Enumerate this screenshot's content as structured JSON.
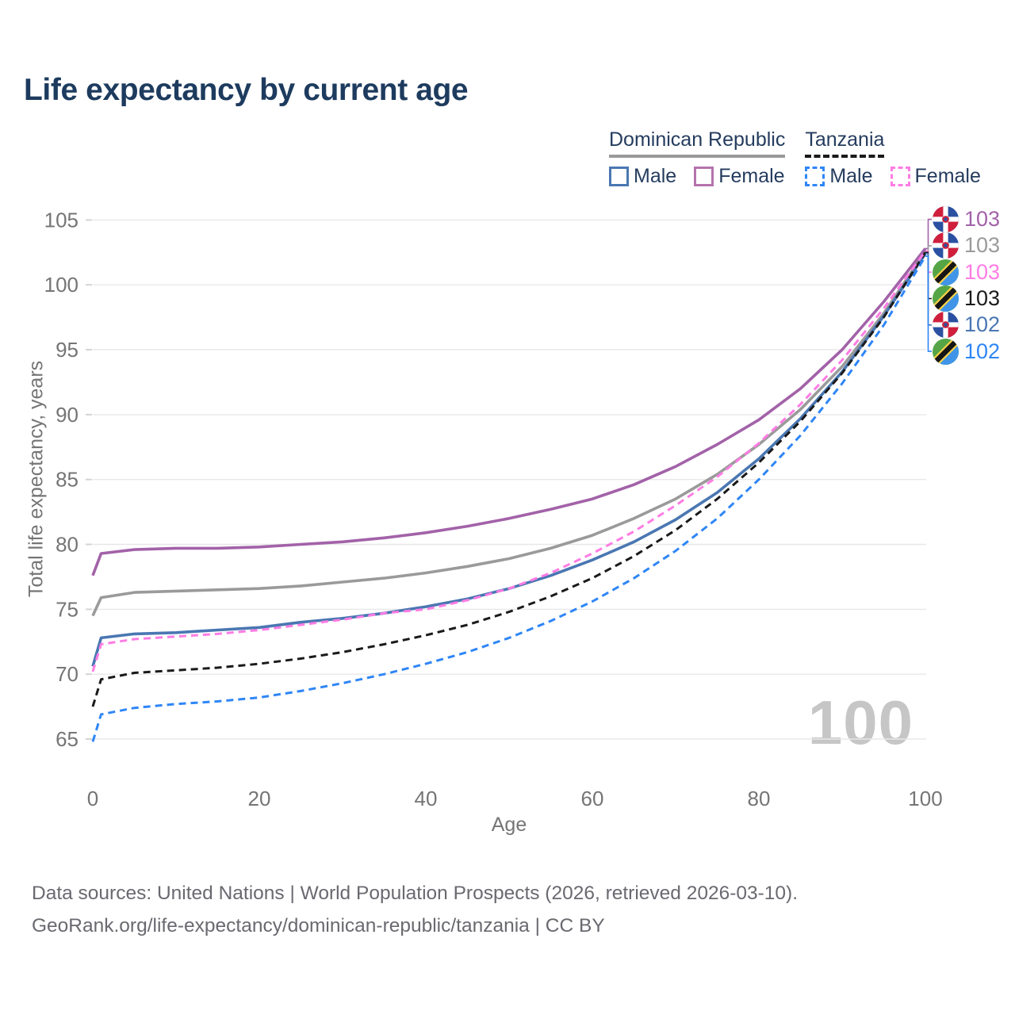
{
  "title": "Life expectancy by current age",
  "watermark": "100",
  "legend": {
    "groups": [
      {
        "label": "Dominican Republic",
        "line_style": "solid",
        "underline_color": "#9a9a9a",
        "items": [
          {
            "label": "Male",
            "color": "#4a77b2"
          },
          {
            "label": "Female",
            "color": "#b573ad"
          }
        ]
      },
      {
        "label": "Tanzania",
        "line_style": "dashed",
        "underline_color": "#1a1a1a",
        "items": [
          {
            "label": "Male",
            "color": "#2f86f6"
          },
          {
            "label": "Female",
            "color": "#ff7ce4"
          }
        ]
      }
    ]
  },
  "chart_data": {
    "type": "line",
    "title": "Life expectancy by current age",
    "xlabel": "Age",
    "ylabel": "Total life expectancy, years",
    "xlim": [
      0,
      100
    ],
    "ylim": [
      65,
      105
    ],
    "xticks": [
      0,
      20,
      40,
      60,
      80,
      100
    ],
    "yticks": [
      65,
      70,
      75,
      80,
      85,
      90,
      95,
      100,
      105
    ],
    "grid": "horizontal",
    "x": [
      0,
      1,
      5,
      10,
      15,
      20,
      25,
      30,
      35,
      40,
      45,
      50,
      55,
      60,
      65,
      70,
      75,
      80,
      85,
      90,
      95,
      100
    ],
    "series": [
      {
        "id": "dr_total",
        "name": "Dominican Republic - Total",
        "country": "Dominican Republic",
        "sex": "Both",
        "color": "#9a9a9a",
        "dash": false,
        "values": [
          74.5,
          75.9,
          76.3,
          76.4,
          76.5,
          76.6,
          76.8,
          77.1,
          77.4,
          77.8,
          78.3,
          78.9,
          79.7,
          80.7,
          82.0,
          83.5,
          85.4,
          87.7,
          90.4,
          93.7,
          97.8,
          102.6
        ],
        "end_value_label": "103"
      },
      {
        "id": "dr_male",
        "name": "Dominican Republic - Male",
        "country": "Dominican Republic",
        "sex": "Male",
        "color": "#4a77b2",
        "dash": false,
        "values": [
          70.6,
          72.8,
          73.1,
          73.2,
          73.4,
          73.6,
          74.0,
          74.3,
          74.7,
          75.2,
          75.8,
          76.6,
          77.6,
          78.8,
          80.2,
          81.9,
          84.0,
          86.6,
          89.7,
          93.3,
          97.6,
          102.4
        ],
        "end_value_label": "102"
      },
      {
        "id": "dr_female",
        "name": "Dominican Republic - Female",
        "country": "Dominican Republic",
        "sex": "Female",
        "color": "#a262a8",
        "dash": false,
        "values": [
          77.6,
          79.3,
          79.6,
          79.7,
          79.7,
          79.8,
          80.0,
          80.2,
          80.5,
          80.9,
          81.4,
          82.0,
          82.7,
          83.5,
          84.6,
          86.0,
          87.7,
          89.6,
          92.0,
          95.0,
          98.7,
          102.8
        ],
        "end_value_label": "103"
      },
      {
        "id": "tz_total",
        "name": "Tanzania - Total",
        "country": "Tanzania",
        "sex": "Both",
        "color": "#1a1a1a",
        "dash": true,
        "values": [
          67.5,
          69.6,
          70.1,
          70.3,
          70.5,
          70.8,
          71.2,
          71.7,
          72.3,
          73.0,
          73.8,
          74.8,
          76.0,
          77.4,
          79.1,
          81.1,
          83.5,
          86.3,
          89.5,
          93.2,
          97.5,
          102.5
        ],
        "end_value_label": "103"
      },
      {
        "id": "tz_female",
        "name": "Tanzania - Female",
        "country": "Tanzania",
        "sex": "Female",
        "color": "#ff7ce4",
        "dash": true,
        "values": [
          70.2,
          72.3,
          72.7,
          72.9,
          73.1,
          73.4,
          73.8,
          74.2,
          74.7,
          75.0,
          75.7,
          76.6,
          77.8,
          79.3,
          81.0,
          83.0,
          85.2,
          87.8,
          90.8,
          94.2,
          98.2,
          102.6
        ],
        "end_value_label": "103"
      },
      {
        "id": "tz_male",
        "name": "Tanzania - Male",
        "country": "Tanzania",
        "sex": "Male",
        "color": "#2f86f6",
        "dash": true,
        "values": [
          64.8,
          66.9,
          67.4,
          67.7,
          67.9,
          68.2,
          68.7,
          69.3,
          70.0,
          70.8,
          71.7,
          72.8,
          74.1,
          75.6,
          77.4,
          79.5,
          82.0,
          85.0,
          88.4,
          92.4,
          96.9,
          102.2
        ],
        "end_value_label": "102"
      }
    ]
  },
  "end_labels": [
    {
      "flag": "dominican-republic",
      "value": "103",
      "color": "#a262a8",
      "series_id": "dr_female"
    },
    {
      "flag": "dominican-republic",
      "value": "103",
      "color": "#9a9a9a",
      "series_id": "dr_total"
    },
    {
      "flag": "tanzania",
      "value": "103",
      "color": "#ff7ce4",
      "series_id": "tz_female"
    },
    {
      "flag": "tanzania",
      "value": "103",
      "color": "#1a1a1a",
      "series_id": "tz_total"
    },
    {
      "flag": "dominican-republic",
      "value": "102",
      "color": "#4a77b2",
      "series_id": "dr_male"
    },
    {
      "flag": "tanzania",
      "value": "102",
      "color": "#2f86f6",
      "series_id": "tz_male"
    }
  ],
  "footer": {
    "line1": "Data sources: United Nations | World Population Prospects (2026, retrieved 2026-03-10).",
    "line2": "GeoRank.org/life-expectancy/dominican-republic/tanzania | CC BY"
  }
}
